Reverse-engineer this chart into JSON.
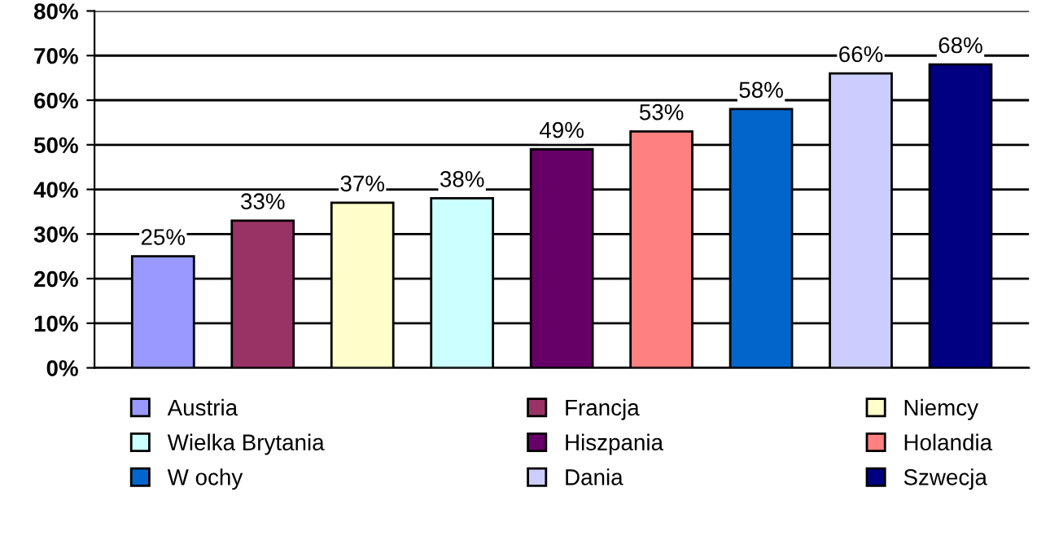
{
  "chart_data": {
    "type": "bar",
    "categories": [
      null
    ],
    "series": [
      {
        "name": "Austria",
        "color": "#9999ff",
        "values": [
          25
        ],
        "value_labels": [
          "25%"
        ]
      },
      {
        "name": "Francja",
        "color": "#993366",
        "values": [
          33
        ],
        "value_labels": [
          "33%"
        ]
      },
      {
        "name": "Niemcy",
        "color": "#ffffcc",
        "values": [
          37
        ],
        "value_labels": [
          "37%"
        ]
      },
      {
        "name": "Wielka Brytania",
        "color": "#ccffff",
        "values": [
          38
        ],
        "value_labels": [
          "38%"
        ]
      },
      {
        "name": "Hiszpania",
        "color": "#660066",
        "values": [
          49
        ],
        "value_labels": [
          "49%"
        ]
      },
      {
        "name": "Holandia",
        "color": "#ff8080",
        "values": [
          53
        ],
        "value_labels": [
          "53%"
        ]
      },
      {
        "name": "W ochy",
        "color": "#0066cc",
        "values": [
          58
        ],
        "value_labels": [
          "58%"
        ]
      },
      {
        "name": "Dania",
        "color": "#ccccff",
        "values": [
          66
        ],
        "value_labels": [
          "66%"
        ]
      },
      {
        "name": "Szwecja",
        "color": "#000080",
        "values": [
          68
        ],
        "value_labels": [
          "68%"
        ]
      }
    ],
    "ylim": [
      0,
      80
    ],
    "yticks": [
      {
        "value": 0,
        "label": "0%"
      },
      {
        "value": 10,
        "label": "10%"
      },
      {
        "value": 20,
        "label": "20%"
      },
      {
        "value": 30,
        "label": "30%"
      },
      {
        "value": 40,
        "label": "40%"
      },
      {
        "value": 50,
        "label": "50%"
      },
      {
        "value": 60,
        "label": "60%"
      },
      {
        "value": 70,
        "label": "70%"
      },
      {
        "value": 80,
        "label": "80%"
      }
    ],
    "tick_labels": "y",
    "grid": "y",
    "legend": "bottom"
  }
}
